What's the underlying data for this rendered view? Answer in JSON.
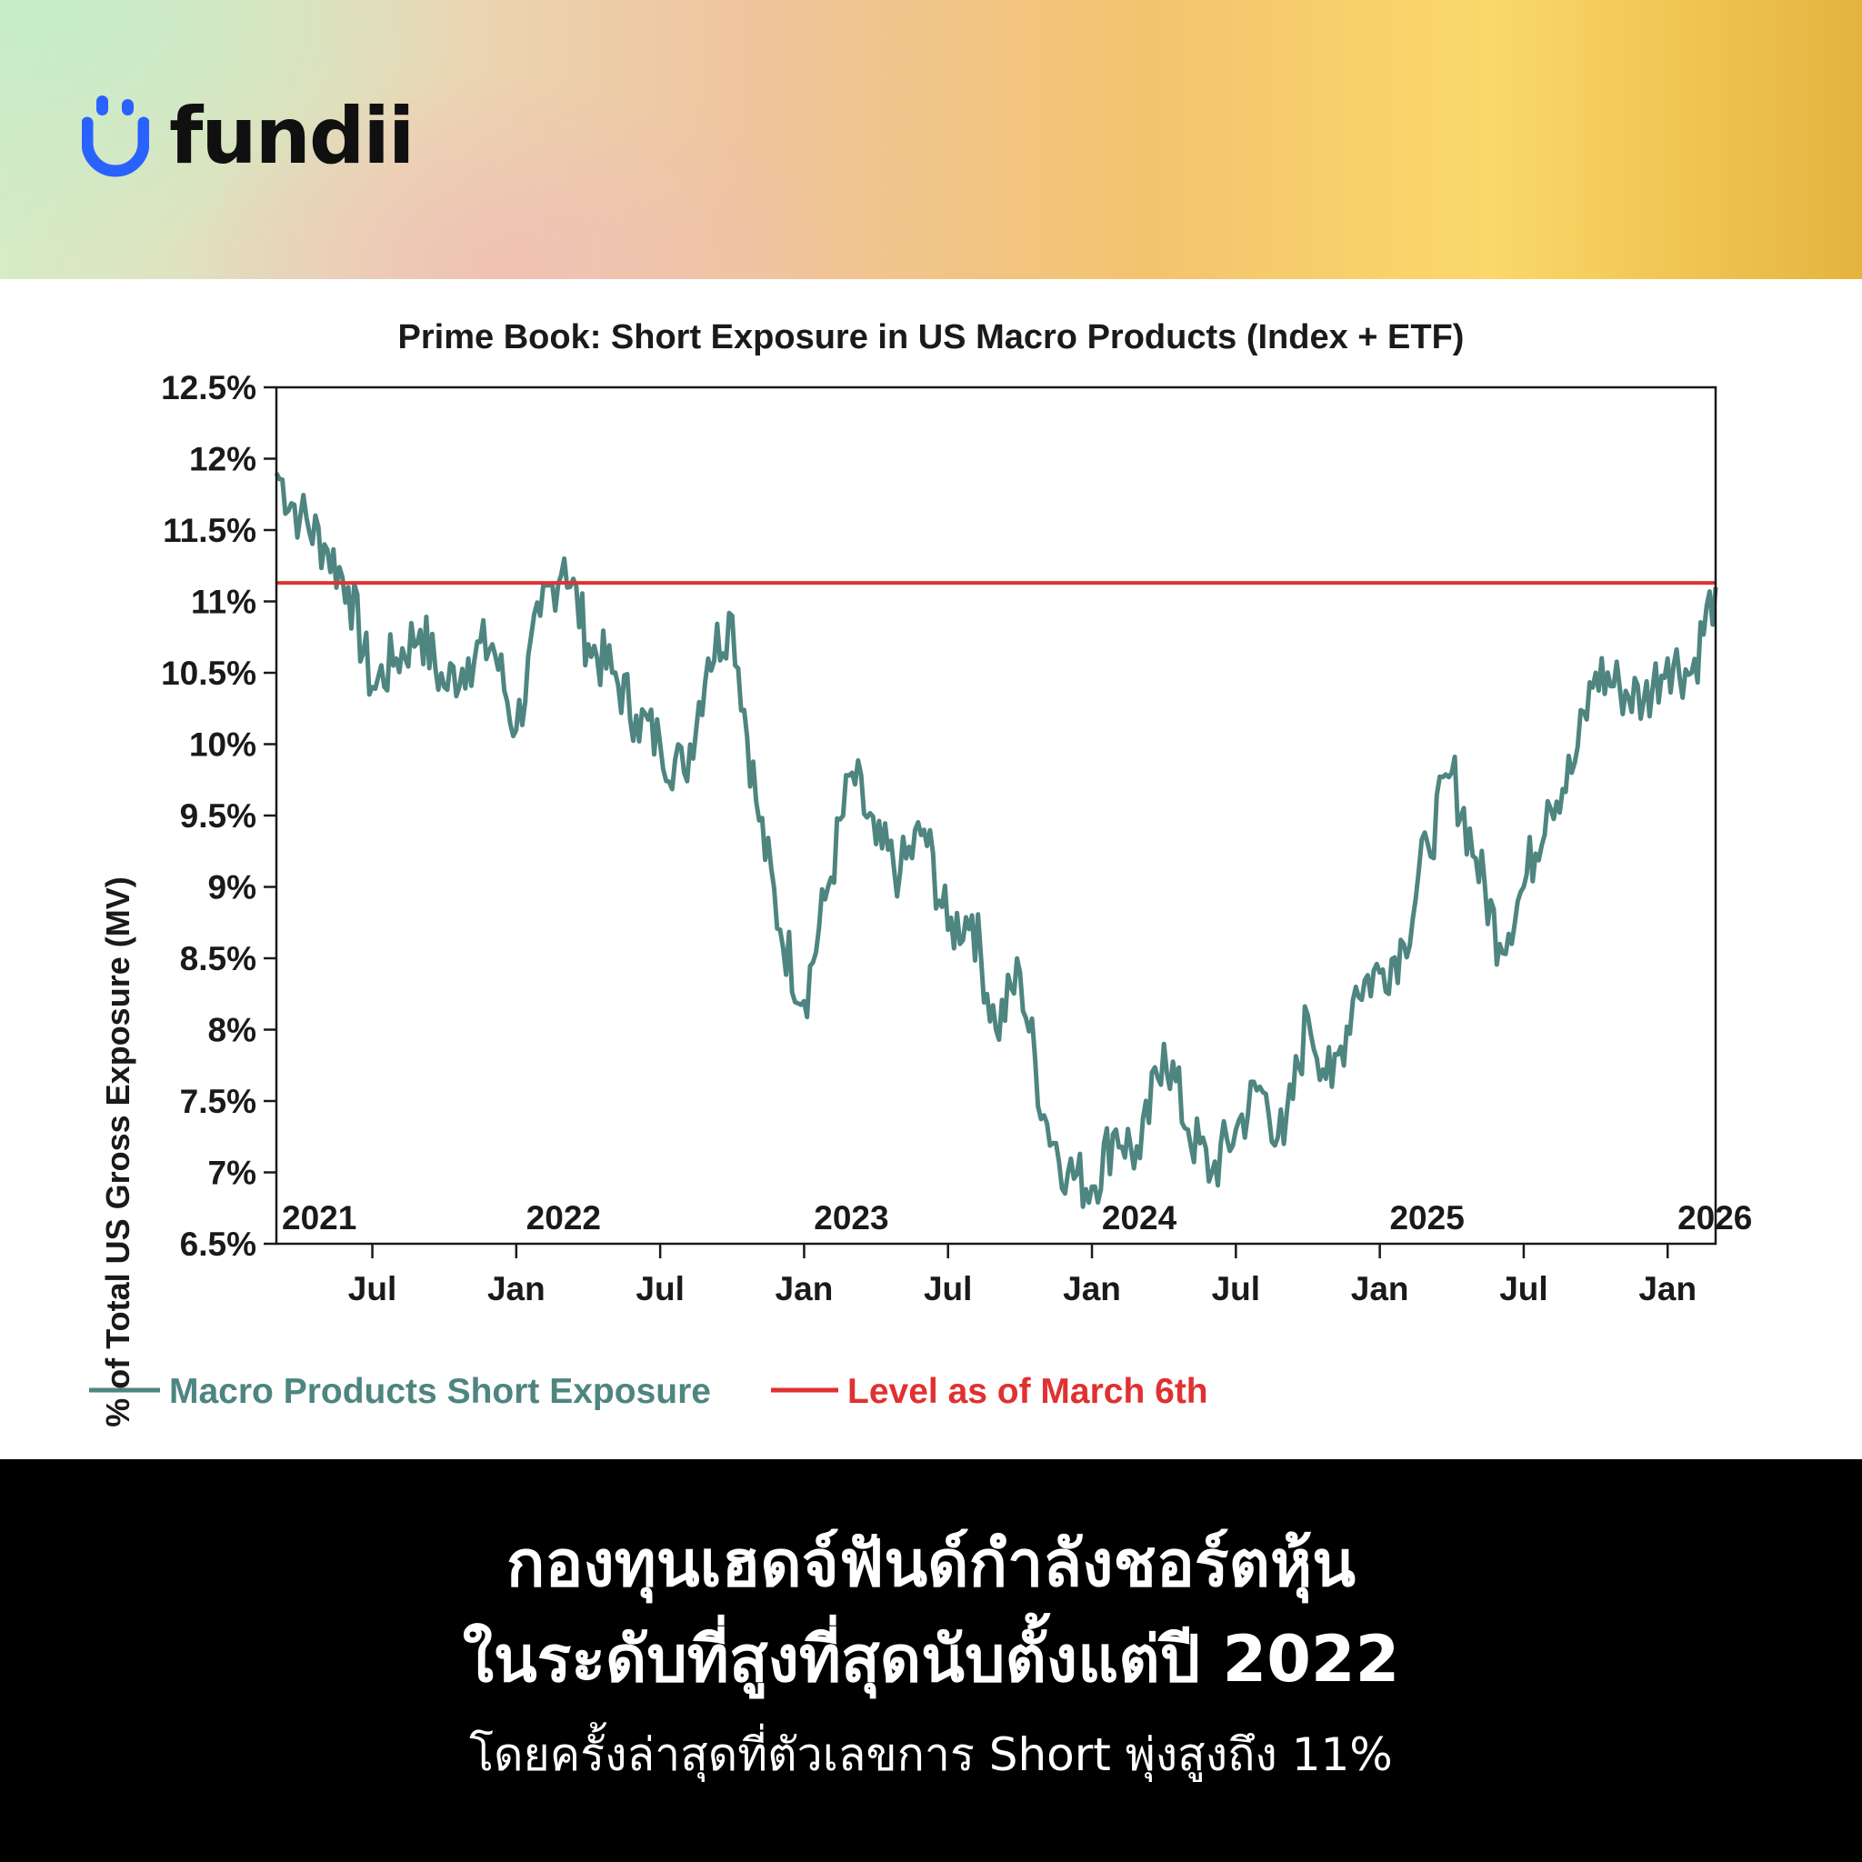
{
  "header": {
    "logo_text": "fundii",
    "logo_color": "#2962ff"
  },
  "chart_data": {
    "type": "line",
    "title": "Prime Book: Short Exposure in US Macro Products (Index + ETF)",
    "ylabel": "% of Total US Gross Exposure (MV)",
    "xlabel": "",
    "x_range": [
      "2021-03",
      "2026-03"
    ],
    "ylim": [
      6.5,
      12.5
    ],
    "y_ticks": [
      6.5,
      7,
      7.5,
      8,
      8.5,
      9,
      9.5,
      10,
      10.5,
      11,
      11.5,
      12,
      12.5
    ],
    "y_tick_labels": [
      "6.5%",
      "7%",
      "7.5%",
      "8%",
      "8.5%",
      "9%",
      "9.5%",
      "10%",
      "10.5%",
      "11%",
      "11.5%",
      "12%",
      "12.5%"
    ],
    "x_year_labels": [
      {
        "label": "2021",
        "x": "2021-03"
      },
      {
        "label": "2022",
        "x": "2022-01"
      },
      {
        "label": "2023",
        "x": "2023-01"
      },
      {
        "label": "2024",
        "x": "2024-01"
      },
      {
        "label": "2025",
        "x": "2025-01"
      },
      {
        "label": "2026",
        "x": "2026-01"
      }
    ],
    "x_month_ticks": [
      {
        "label": "Jul",
        "x": "2021-07"
      },
      {
        "label": "Jan",
        "x": "2022-01"
      },
      {
        "label": "Jul",
        "x": "2022-07"
      },
      {
        "label": "Jan",
        "x": "2023-01"
      },
      {
        "label": "Jul",
        "x": "2023-07"
      },
      {
        "label": "Jan",
        "x": "2024-01"
      },
      {
        "label": "Jul",
        "x": "2024-07"
      },
      {
        "label": "Jan",
        "x": "2025-01"
      },
      {
        "label": "Jul",
        "x": "2025-07"
      },
      {
        "label": "Jan",
        "x": "2026-01"
      }
    ],
    "grid": false,
    "legend_position": "bottom",
    "series": [
      {
        "name": "Macro Products Short Exposure",
        "color": "#4e8580",
        "points": [
          [
            "2021-03",
            11.9
          ],
          [
            "2021-04",
            11.6
          ],
          [
            "2021-05",
            11.4
          ],
          [
            "2021-06",
            11.1
          ],
          [
            "2021-07",
            10.4
          ],
          [
            "2021-08",
            10.6
          ],
          [
            "2021-09",
            10.8
          ],
          [
            "2021-10",
            10.4
          ],
          [
            "2021-11",
            10.6
          ],
          [
            "2021-12",
            10.7
          ],
          [
            "2022-01",
            10.1
          ],
          [
            "2022-02",
            10.9
          ],
          [
            "2022-03",
            11.3
          ],
          [
            "2022-04",
            10.7
          ],
          [
            "2022-05",
            10.5
          ],
          [
            "2022-06",
            10.2
          ],
          [
            "2022-07",
            10.0
          ],
          [
            "2022-08",
            9.8
          ],
          [
            "2022-09",
            10.6
          ],
          [
            "2022-10",
            10.9
          ],
          [
            "2022-11",
            9.6
          ],
          [
            "2022-12",
            8.7
          ],
          [
            "2023-01",
            8.2
          ],
          [
            "2023-02",
            9.0
          ],
          [
            "2023-03",
            9.8
          ],
          [
            "2023-04",
            9.3
          ],
          [
            "2023-05",
            9.1
          ],
          [
            "2023-06",
            9.4
          ],
          [
            "2023-07",
            8.7
          ],
          [
            "2023-08",
            8.8
          ],
          [
            "2023-09",
            8.0
          ],
          [
            "2023-10",
            8.4
          ],
          [
            "2023-11",
            7.4
          ],
          [
            "2023-12",
            7.0
          ],
          [
            "2024-01",
            6.9
          ],
          [
            "2024-02",
            7.3
          ],
          [
            "2024-03",
            7.1
          ],
          [
            "2024-04",
            7.9
          ],
          [
            "2024-05",
            7.3
          ],
          [
            "2024-06",
            7.0
          ],
          [
            "2024-07",
            7.3
          ],
          [
            "2024-08",
            7.6
          ],
          [
            "2024-09",
            7.2
          ],
          [
            "2024-10",
            8.1
          ],
          [
            "2024-11",
            7.6
          ],
          [
            "2024-12",
            8.3
          ],
          [
            "2025-01",
            8.4
          ],
          [
            "2025-02",
            8.6
          ],
          [
            "2025-03",
            9.3
          ],
          [
            "2025-04",
            9.8
          ],
          [
            "2025-05",
            9.2
          ],
          [
            "2025-06",
            8.6
          ],
          [
            "2025-07",
            9.0
          ],
          [
            "2025-08",
            9.6
          ],
          [
            "2025-09",
            9.8
          ],
          [
            "2025-10",
            10.5
          ],
          [
            "2025-11",
            10.4
          ],
          [
            "2025-12",
            10.3
          ],
          [
            "2026-01",
            10.6
          ],
          [
            "2026-02",
            10.5
          ],
          [
            "2026-03",
            11.1
          ]
        ]
      },
      {
        "name": "Level as of March 6th",
        "color": "#e03131",
        "value": 11.13
      }
    ]
  },
  "footer": {
    "line1": "กองทุนเฮดจ์ฟันด์กำลังชอร์ตหุ้น",
    "line2": "ในระดับที่สูงที่สุดนับตั้งแต่ปี 2022",
    "line3": "โดยครั้งล่าสุดที่ตัวเลขการ Short พุ่งสูงถึง 11%"
  }
}
